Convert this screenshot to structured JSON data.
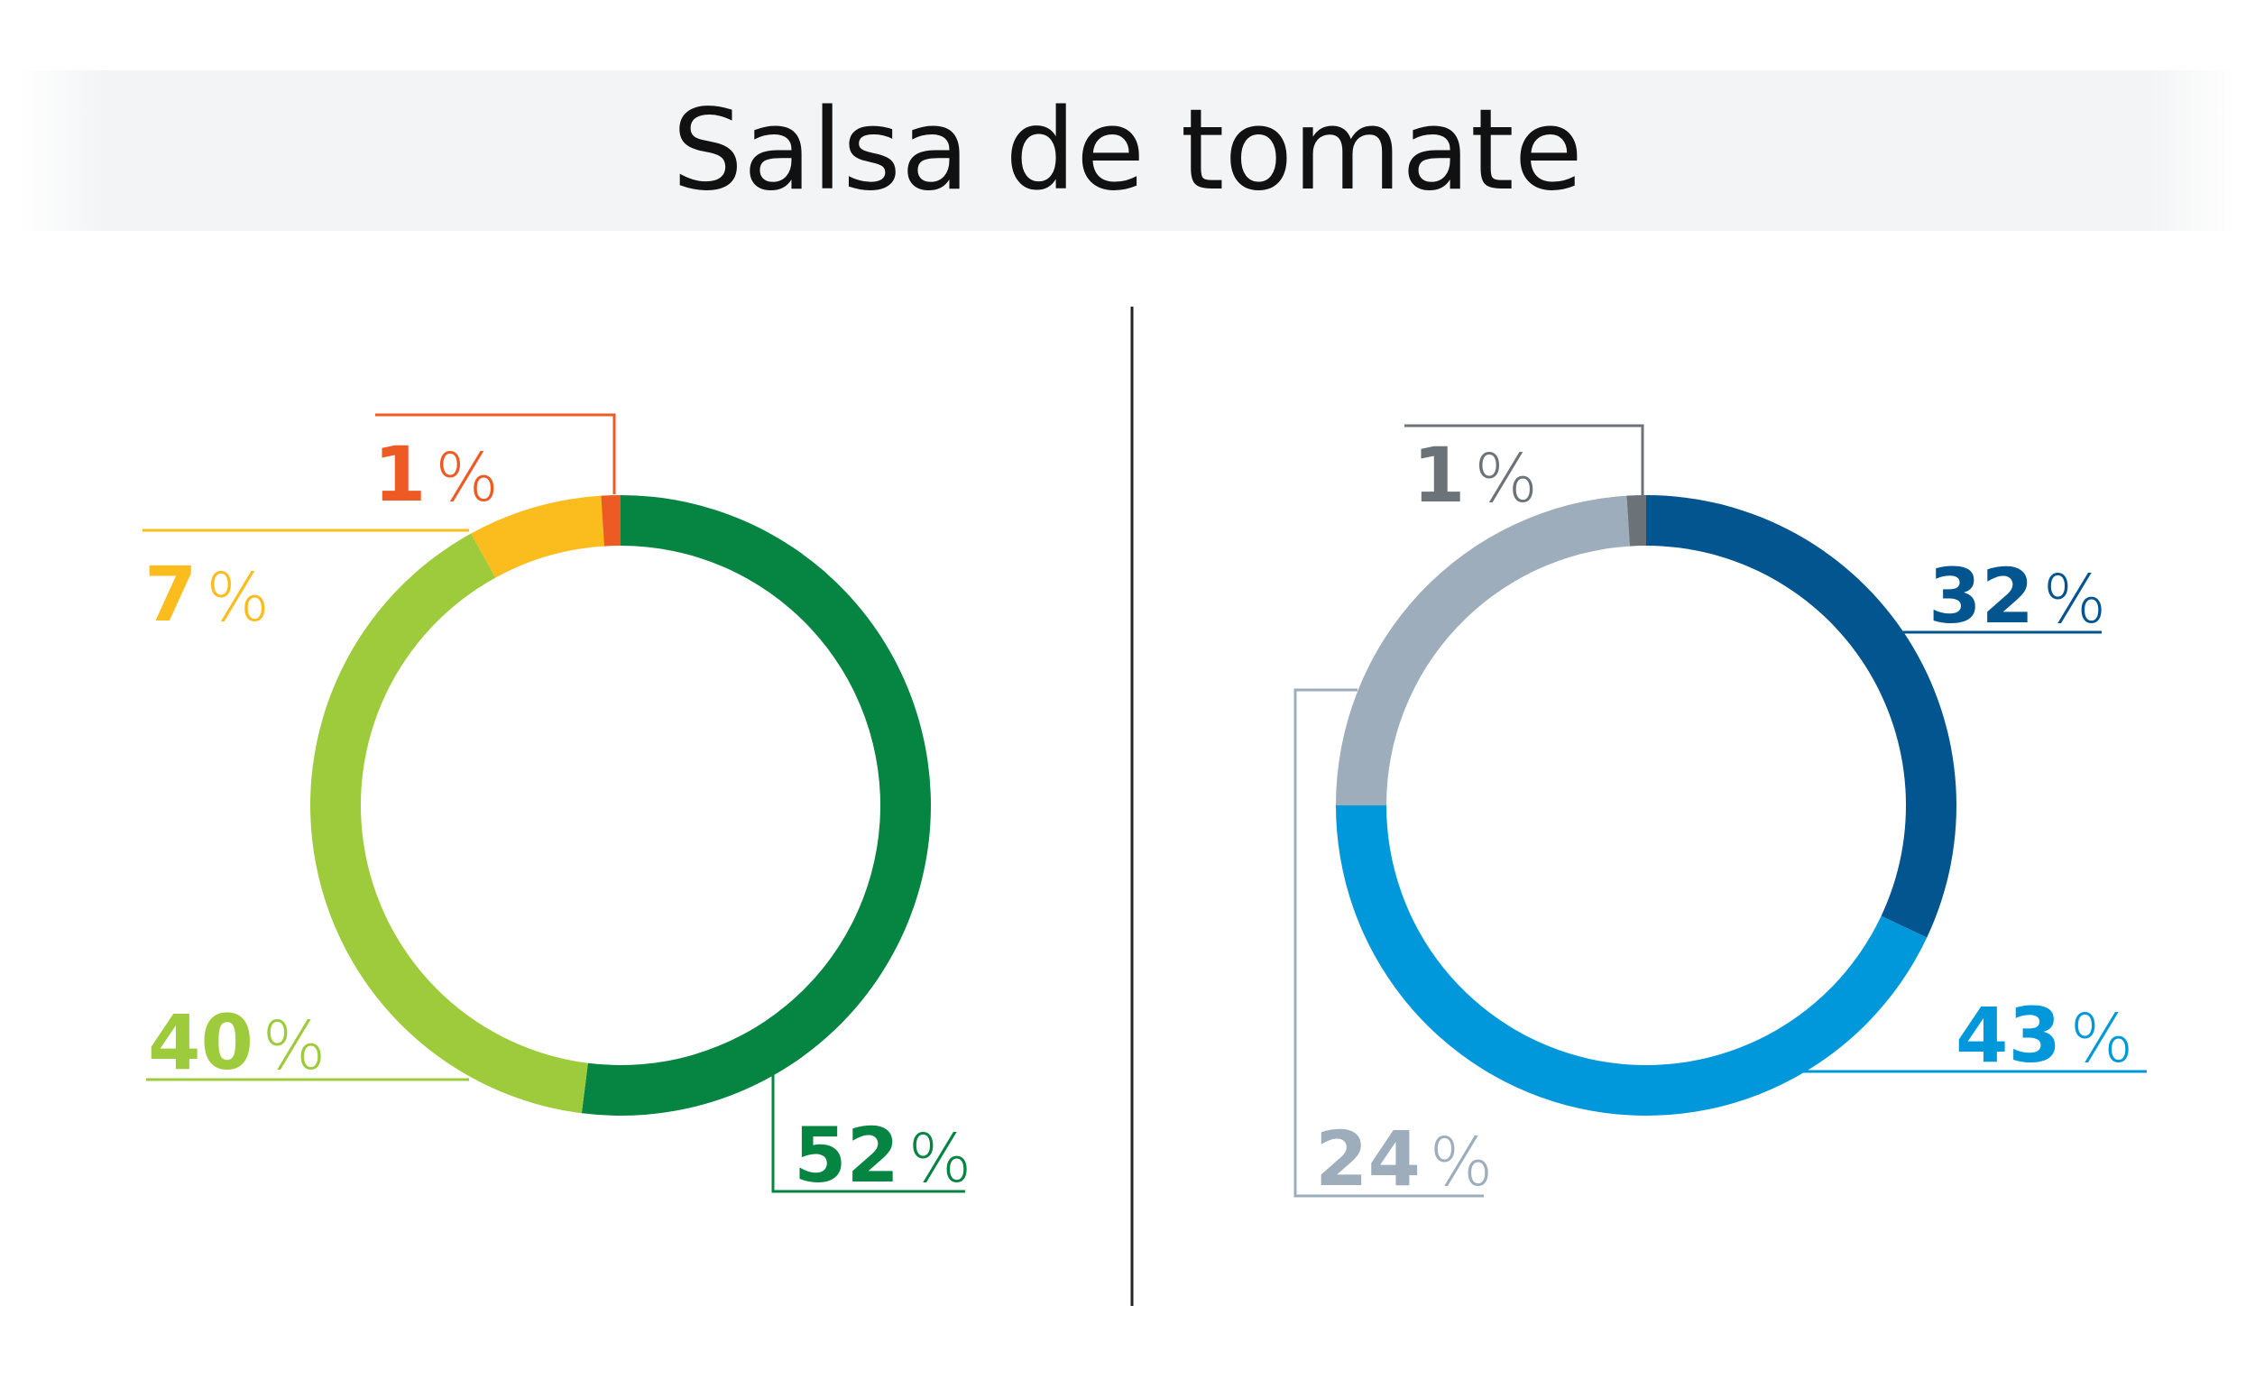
{
  "title": "Salsa de tomate",
  "chart_data": [
    {
      "type": "pie",
      "donut": true,
      "slices": [
        {
          "value": 52,
          "label": "52",
          "unit": "%",
          "color": "#068441"
        },
        {
          "value": 40,
          "label": "40",
          "unit": "%",
          "color": "#9ecb3b"
        },
        {
          "value": 7,
          "label": "7",
          "unit": "%",
          "color": "#fbbc1d"
        },
        {
          "value": 1,
          "label": "1",
          "unit": "%",
          "color": "#ee5a24"
        }
      ]
    },
    {
      "type": "pie",
      "donut": true,
      "slices": [
        {
          "value": 32,
          "label": "32",
          "unit": "%",
          "color": "#03558f"
        },
        {
          "value": 43,
          "label": "43",
          "unit": "%",
          "color": "#0098da"
        },
        {
          "value": 24,
          "label": "24",
          "unit": "%",
          "color": "#9eadbc"
        },
        {
          "value": 1,
          "label": "1",
          "unit": "%",
          "color": "#6b7378"
        }
      ]
    }
  ]
}
